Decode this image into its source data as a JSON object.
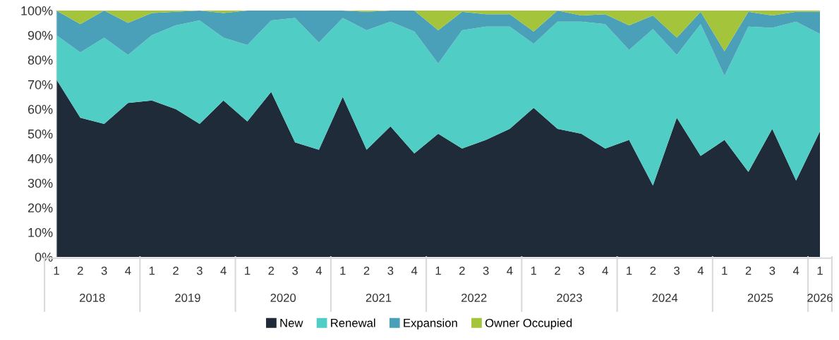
{
  "chart_data": {
    "type": "area",
    "stacked": true,
    "categories": [
      "1",
      "2",
      "3",
      "4",
      "1",
      "2",
      "3",
      "4",
      "1",
      "2",
      "3",
      "4",
      "1",
      "2",
      "3",
      "4",
      "1",
      "2",
      "3",
      "4",
      "1",
      "2",
      "3",
      "4",
      "1",
      "2",
      "3",
      "4",
      "1",
      "2",
      "3",
      "4",
      "1"
    ],
    "annotations": [
      "2018",
      "2019",
      "2020",
      "2021",
      "2022",
      "2023",
      "2024",
      "2025",
      "2026"
    ],
    "series": [
      {
        "name": "New",
        "color": "#1f2b38",
        "values": [
          72,
          56.5,
          54,
          62.5,
          63.5,
          60,
          54,
          63.5,
          55,
          67,
          46.5,
          43.5,
          65,
          43.5,
          53,
          42,
          50,
          44,
          47.5,
          52,
          60.5,
          52,
          50,
          44,
          47.5,
          29,
          56.5,
          41,
          47.5,
          34.5,
          52,
          31,
          51
        ]
      },
      {
        "name": "Renewal",
        "color": "#50cdc4",
        "values": [
          18,
          26.5,
          35,
          19.5,
          26.5,
          34,
          42,
          25.5,
          31,
          29,
          50.5,
          43.5,
          32,
          48.5,
          42.5,
          49.5,
          28.5,
          48,
          46,
          41.5,
          26,
          43.5,
          45.5,
          50.5,
          36.5,
          63.5,
          25.5,
          53.5,
          26,
          59,
          41,
          64.5,
          39.5
        ]
      },
      {
        "name": "Expansion",
        "color": "#4aa0b8",
        "values": [
          10,
          11.5,
          11,
          13,
          9,
          5.5,
          4,
          10,
          14,
          4,
          3,
          13,
          3,
          7.5,
          4.5,
          8.5,
          13.5,
          7.5,
          5,
          5,
          5,
          4.5,
          2.5,
          4,
          10,
          5.5,
          7,
          5,
          10,
          6,
          5,
          4,
          9
        ]
      },
      {
        "name": "Owner Occupied",
        "color": "#a4c43c",
        "values": [
          0,
          5.5,
          0,
          5,
          1,
          0.5,
          0,
          1,
          0,
          0,
          0,
          0,
          0,
          0.5,
          0,
          0,
          8,
          0.5,
          1.5,
          1.5,
          8.5,
          0,
          2,
          1.5,
          6,
          2,
          11,
          0.5,
          16.5,
          0.5,
          2,
          0.5,
          0.5
        ]
      }
    ],
    "ylim": [
      0,
      100
    ],
    "yticks": [
      {
        "value": 0,
        "label": "0%"
      },
      {
        "value": 10,
        "label": "10%"
      },
      {
        "value": 20,
        "label": "20%"
      },
      {
        "value": 30,
        "label": "30%"
      },
      {
        "value": 40,
        "label": "40%"
      },
      {
        "value": 50,
        "label": "50%"
      },
      {
        "value": 60,
        "label": "60%"
      },
      {
        "value": 70,
        "label": "70%"
      },
      {
        "value": 80,
        "label": "80%"
      },
      {
        "value": 90,
        "label": "90%"
      },
      {
        "value": 100,
        "label": "100%"
      }
    ],
    "grid": false,
    "legend": "bottom"
  }
}
